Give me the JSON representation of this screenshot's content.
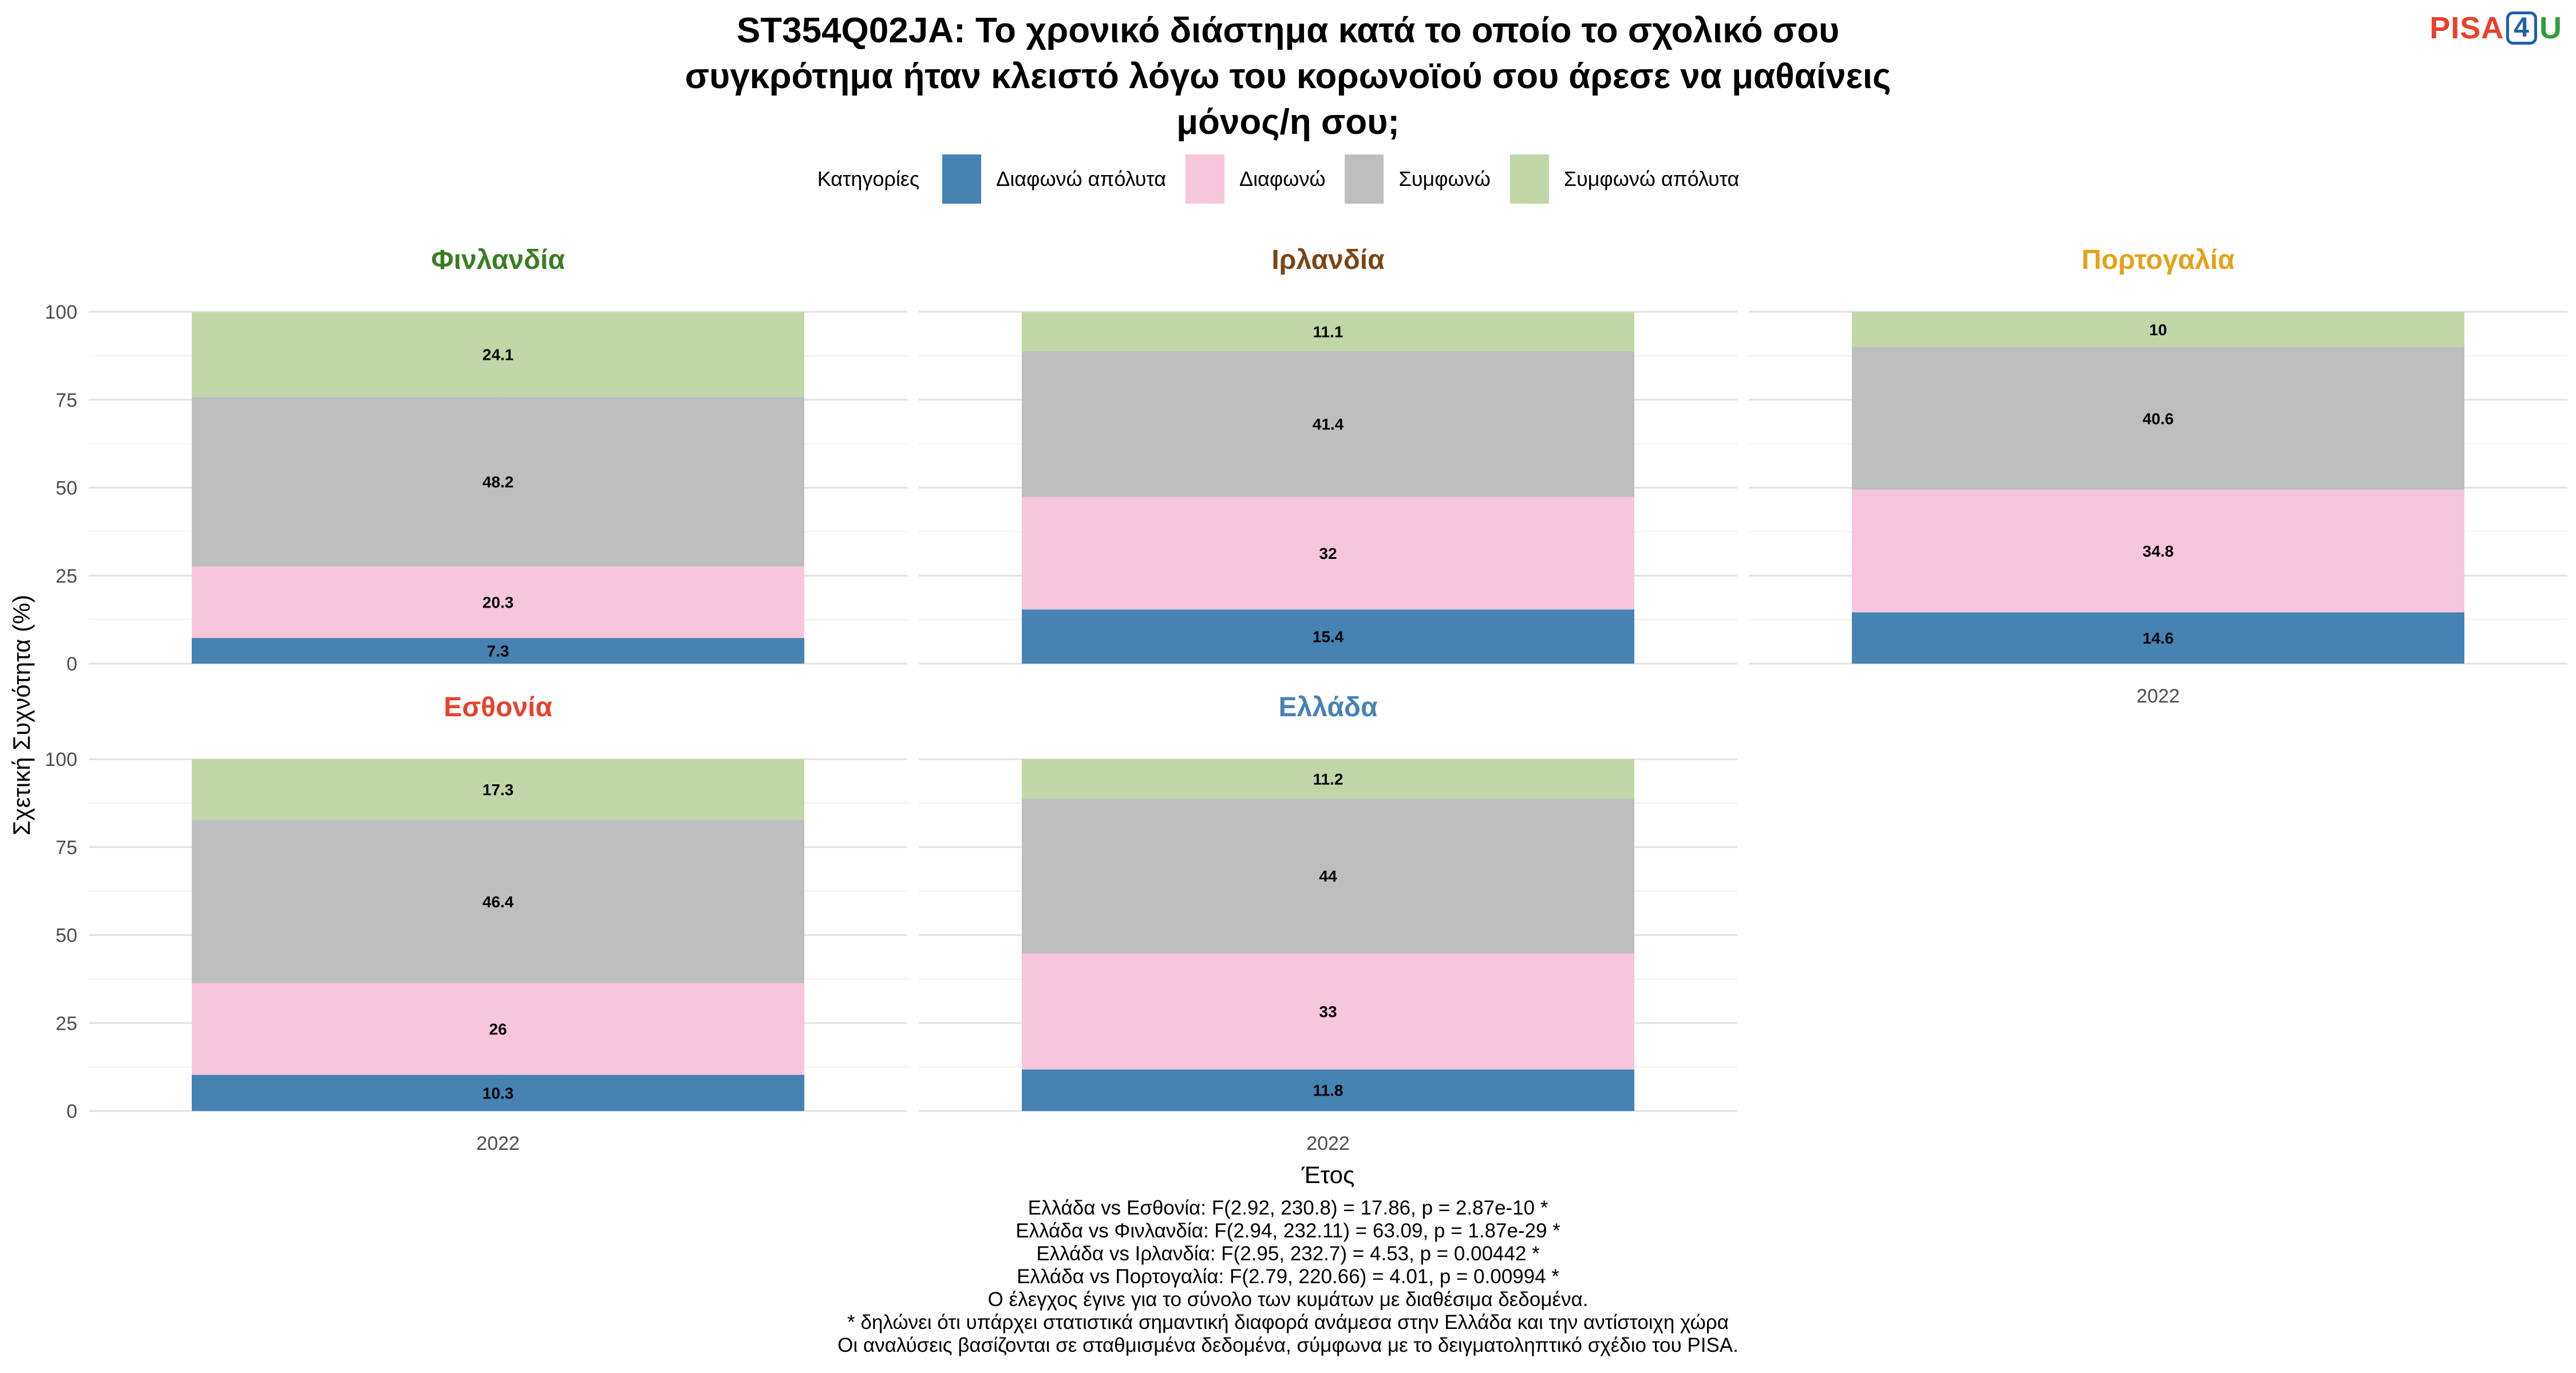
{
  "title_lines": [
    "ST354Q02JA: Το χρονικό διάστημα κατά το οποίο το σχολικό σου",
    "συγκρότημα ήταν κλειστό λόγω του κορωνοϊού σου άρεσε να μαθαίνεις",
    "μόνος/η σου;"
  ],
  "logo": {
    "part1": "PISA",
    "part2": "4",
    "part3": "U"
  },
  "legend": {
    "title": "Κατηγορίες",
    "items": [
      {
        "label": "Διαφωνώ απόλυτα",
        "color": "#4682b4"
      },
      {
        "label": "Διαφωνώ",
        "color": "#f7c6dc"
      },
      {
        "label": "Συμφωνώ",
        "color": "#bebebe"
      },
      {
        "label": "Συμφωνώ απόλυτα",
        "color": "#c1d6a6"
      }
    ]
  },
  "chart_data": {
    "type": "bar",
    "stacked": true,
    "xlabel": "Έτος",
    "ylabel": "Σχετική Συχνότητα (%)",
    "ylim": [
      0,
      100
    ],
    "yticks": [
      0,
      25,
      50,
      75,
      100
    ],
    "categories": [
      "2022"
    ],
    "panels": [
      {
        "name": "Φινλανδία",
        "color": "#3a7d22",
        "values": [
          7.3,
          20.3,
          48.2,
          24.1
        ]
      },
      {
        "name": "Ιρλανδία",
        "color": "#7a4515",
        "values": [
          15.4,
          32,
          41.4,
          11.1
        ]
      },
      {
        "name": "Πορτογαλία",
        "color": "#e3a21a",
        "values": [
          14.6,
          34.8,
          40.6,
          10
        ]
      },
      {
        "name": "Εσθονία",
        "color": "#e8412c",
        "values": [
          10.3,
          26,
          46.4,
          17.3
        ]
      },
      {
        "name": "Ελλάδα",
        "color": "#4682b4",
        "values": [
          11.8,
          33,
          44,
          11.2
        ]
      }
    ],
    "series": [
      "Διαφωνώ απόλυτα",
      "Διαφωνώ",
      "Συμφωνώ",
      "Συμφωνώ απόλυτα"
    ]
  },
  "stats_lines": [
    "Ελλάδα vs Εσθονία: F(2.92, 230.8) = 17.86, p = 2.87e-10 *",
    "Ελλάδα vs Φινλανδία: F(2.94, 232.11) = 63.09, p = 1.87e-29 *",
    "Ελλάδα vs Ιρλανδία: F(2.95, 232.7) = 4.53, p = 0.00442 *",
    "Ελλάδα vs Πορτογαλία: F(2.79, 220.66) = 4.01, p = 0.00994 *",
    "Ο έλεγχος έγινε για το σύνολο των κυμάτων με διαθέσιμα δεδομένα.",
    "* δηλώνει ότι υπάρχει στατιστικά σημαντική διαφορά ανάμεσα στην Ελλάδα και την αντίστοιχη χώρα",
    "Οι αναλύσεις βασίζονται σε σταθμισμένα δεδομένα, σύμφωνα με το δειγματοληπτικό σχέδιο του PISA."
  ]
}
